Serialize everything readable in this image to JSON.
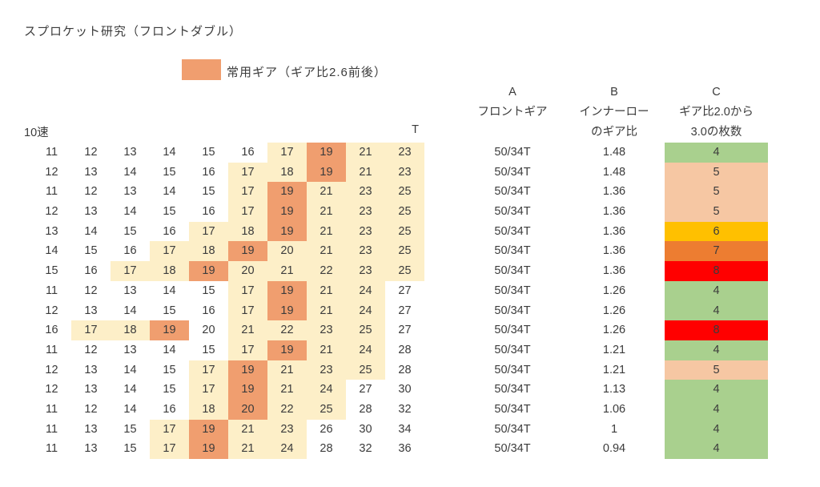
{
  "title": "スプロケット研究（フロントダブル）",
  "legend": {
    "label": "常用ギア（ギア比2.6前後）"
  },
  "colors": {
    "highlight_orange": "#f09e6f",
    "cream": "#fdefc8",
    "green": "#a9d08e",
    "pink": "#f6c7a3",
    "amber": "#ffc000",
    "dark_orange": "#ed7d31",
    "red": "#ff0000"
  },
  "left_table": {
    "speed_label": "10速",
    "teeth_unit_label": "T",
    "rows": [
      {
        "teeth": [
          11,
          12,
          13,
          14,
          15,
          16,
          17,
          19,
          21,
          23
        ],
        "marks": [
          "none",
          "none",
          "none",
          "none",
          "none",
          "none",
          "cream",
          "orange",
          "cream",
          "cream"
        ]
      },
      {
        "teeth": [
          12,
          13,
          14,
          15,
          16,
          17,
          18,
          19,
          21,
          23
        ],
        "marks": [
          "none",
          "none",
          "none",
          "none",
          "none",
          "cream",
          "cream",
          "orange",
          "cream",
          "cream"
        ]
      },
      {
        "teeth": [
          11,
          12,
          13,
          14,
          15,
          17,
          19,
          21,
          23,
          25
        ],
        "marks": [
          "none",
          "none",
          "none",
          "none",
          "none",
          "cream",
          "orange",
          "cream",
          "cream",
          "cream"
        ]
      },
      {
        "teeth": [
          12,
          13,
          14,
          15,
          16,
          17,
          19,
          21,
          23,
          25
        ],
        "marks": [
          "none",
          "none",
          "none",
          "none",
          "none",
          "cream",
          "orange",
          "cream",
          "cream",
          "cream"
        ]
      },
      {
        "teeth": [
          13,
          14,
          15,
          16,
          17,
          18,
          19,
          21,
          23,
          25
        ],
        "marks": [
          "none",
          "none",
          "none",
          "none",
          "cream",
          "cream",
          "orange",
          "cream",
          "cream",
          "cream"
        ]
      },
      {
        "teeth": [
          14,
          15,
          16,
          17,
          18,
          19,
          20,
          21,
          23,
          25
        ],
        "marks": [
          "none",
          "none",
          "none",
          "cream",
          "cream",
          "orange",
          "cream",
          "cream",
          "cream",
          "cream"
        ]
      },
      {
        "teeth": [
          15,
          16,
          17,
          18,
          19,
          20,
          21,
          22,
          23,
          25
        ],
        "marks": [
          "none",
          "none",
          "cream",
          "cream",
          "orange",
          "cream",
          "cream",
          "cream",
          "cream",
          "cream"
        ]
      },
      {
        "teeth": [
          11,
          12,
          13,
          14,
          15,
          17,
          19,
          21,
          24,
          27
        ],
        "marks": [
          "none",
          "none",
          "none",
          "none",
          "none",
          "cream",
          "orange",
          "cream",
          "cream",
          "none"
        ]
      },
      {
        "teeth": [
          12,
          13,
          14,
          15,
          16,
          17,
          19,
          21,
          24,
          27
        ],
        "marks": [
          "none",
          "none",
          "none",
          "none",
          "none",
          "cream",
          "orange",
          "cream",
          "cream",
          "none"
        ]
      },
      {
        "teeth": [
          16,
          17,
          18,
          19,
          20,
          21,
          22,
          23,
          25,
          27
        ],
        "marks": [
          "none",
          "cream",
          "cream",
          "orange",
          "none",
          "cream",
          "cream",
          "cream",
          "cream",
          "none"
        ]
      },
      {
        "teeth": [
          11,
          12,
          13,
          14,
          15,
          17,
          19,
          21,
          24,
          28
        ],
        "marks": [
          "none",
          "none",
          "none",
          "none",
          "none",
          "cream",
          "orange",
          "cream",
          "cream",
          "none"
        ]
      },
      {
        "teeth": [
          12,
          13,
          14,
          15,
          17,
          19,
          21,
          23,
          25,
          28
        ],
        "marks": [
          "none",
          "none",
          "none",
          "none",
          "cream",
          "orange",
          "cream",
          "cream",
          "cream",
          "none"
        ]
      },
      {
        "teeth": [
          12,
          13,
          14,
          15,
          17,
          19,
          21,
          24,
          27,
          30
        ],
        "marks": [
          "none",
          "none",
          "none",
          "none",
          "cream",
          "orange",
          "cream",
          "cream",
          "none",
          "none"
        ]
      },
      {
        "teeth": [
          11,
          12,
          14,
          16,
          18,
          20,
          22,
          25,
          28,
          32
        ],
        "marks": [
          "none",
          "none",
          "none",
          "none",
          "cream",
          "orange",
          "cream",
          "cream",
          "none",
          "none"
        ]
      },
      {
        "teeth": [
          11,
          13,
          15,
          17,
          19,
          21,
          23,
          26,
          30,
          34
        ],
        "marks": [
          "none",
          "none",
          "none",
          "cream",
          "orange",
          "cream",
          "cream",
          "none",
          "none",
          "none"
        ]
      },
      {
        "teeth": [
          11,
          13,
          15,
          17,
          19,
          21,
          24,
          28,
          32,
          36
        ],
        "marks": [
          "none",
          "none",
          "none",
          "cream",
          "orange",
          "cream",
          "cream",
          "none",
          "none",
          "none"
        ]
      }
    ]
  },
  "right_table": {
    "col_a": {
      "letter": "A",
      "label": "フロントギア"
    },
    "col_b": {
      "letter": "B",
      "label_line1": "インナーロー",
      "label_line2": "のギア比"
    },
    "col_c": {
      "letter": "C",
      "label_line1": "ギア比2.0から",
      "label_line2": "3.0の枚数"
    },
    "rows": [
      {
        "front": "50/34T",
        "ratio": "1.48",
        "count": "4",
        "color": "green"
      },
      {
        "front": "50/34T",
        "ratio": "1.48",
        "count": "5",
        "color": "pink"
      },
      {
        "front": "50/34T",
        "ratio": "1.36",
        "count": "5",
        "color": "pink"
      },
      {
        "front": "50/34T",
        "ratio": "1.36",
        "count": "5",
        "color": "pink"
      },
      {
        "front": "50/34T",
        "ratio": "1.36",
        "count": "6",
        "color": "amber"
      },
      {
        "front": "50/34T",
        "ratio": "1.36",
        "count": "7",
        "color": "dark_orange"
      },
      {
        "front": "50/34T",
        "ratio": "1.36",
        "count": "8",
        "color": "red"
      },
      {
        "front": "50/34T",
        "ratio": "1.26",
        "count": "4",
        "color": "green"
      },
      {
        "front": "50/34T",
        "ratio": "1.26",
        "count": "4",
        "color": "green"
      },
      {
        "front": "50/34T",
        "ratio": "1.26",
        "count": "8",
        "color": "red"
      },
      {
        "front": "50/34T",
        "ratio": "1.21",
        "count": "4",
        "color": "green"
      },
      {
        "front": "50/34T",
        "ratio": "1.21",
        "count": "5",
        "color": "pink"
      },
      {
        "front": "50/34T",
        "ratio": "1.13",
        "count": "4",
        "color": "green"
      },
      {
        "front": "50/34T",
        "ratio": "1.06",
        "count": "4",
        "color": "green"
      },
      {
        "front": "50/34T",
        "ratio": "1",
        "count": "4",
        "color": "green"
      },
      {
        "front": "50/34T",
        "ratio": "0.94",
        "count": "4",
        "color": "green"
      }
    ]
  }
}
